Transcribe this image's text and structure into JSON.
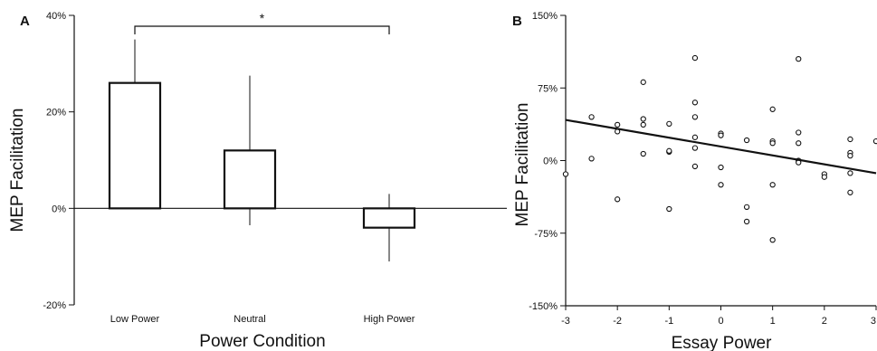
{
  "chart_data": [
    {
      "panel_label": "A",
      "type": "bar",
      "categories": [
        "Low Power",
        "Neutral",
        "High Power"
      ],
      "values": [
        26,
        12,
        -4
      ],
      "error_low": [
        17,
        -3.5,
        -11
      ],
      "error_high": [
        35,
        27.5,
        3
      ],
      "xlabel": "Power Condition",
      "ylabel": "MEP Facilitation",
      "ylim": [
        -20,
        40
      ],
      "yticks": [
        -20,
        0,
        20,
        40
      ],
      "ytick_labels": [
        "-20%",
        "0%",
        "20%",
        "40%"
      ],
      "significance": {
        "from": "Low Power",
        "to": "High Power",
        "label": "*"
      },
      "grid": false
    },
    {
      "panel_label": "B",
      "type": "scatter",
      "xlabel": "Essay Power",
      "ylabel": "MEP Facilitation",
      "xlim": [
        -3,
        3
      ],
      "ylim": [
        -150,
        150
      ],
      "xticks": [
        -3,
        -2,
        -1,
        0,
        1,
        2,
        3
      ],
      "xtick_labels": [
        "-3",
        "-2",
        "-1",
        "0",
        "1",
        "2",
        "3"
      ],
      "yticks": [
        -150,
        -75,
        0,
        75,
        150
      ],
      "ytick_labels": [
        "-150%",
        "-75%",
        "0%",
        "75%",
        "150%"
      ],
      "points": [
        [
          -3,
          -14
        ],
        [
          -2.5,
          45
        ],
        [
          -2.5,
          2
        ],
        [
          -2,
          37
        ],
        [
          -2,
          30
        ],
        [
          -2,
          -40
        ],
        [
          -1.5,
          81
        ],
        [
          -1.5,
          43
        ],
        [
          -1.5,
          37
        ],
        [
          -1.5,
          7
        ],
        [
          -1,
          38
        ],
        [
          -1,
          9
        ],
        [
          -1,
          10
        ],
        [
          -1,
          -50
        ],
        [
          -0.5,
          106
        ],
        [
          -0.5,
          60
        ],
        [
          -0.5,
          45
        ],
        [
          -0.5,
          24
        ],
        [
          -0.5,
          13
        ],
        [
          -0.5,
          -6
        ],
        [
          0,
          28
        ],
        [
          0,
          26
        ],
        [
          0,
          -7
        ],
        [
          0,
          -25
        ],
        [
          0.5,
          21
        ],
        [
          0.5,
          -48
        ],
        [
          0.5,
          -63
        ],
        [
          1,
          53
        ],
        [
          1,
          20
        ],
        [
          1,
          18
        ],
        [
          1,
          -25
        ],
        [
          1,
          -82
        ],
        [
          1.5,
          105
        ],
        [
          1.5,
          29
        ],
        [
          1.5,
          18
        ],
        [
          1.5,
          0
        ],
        [
          1.5,
          -2
        ],
        [
          2,
          -14
        ],
        [
          2,
          -17
        ],
        [
          2.5,
          22
        ],
        [
          2.5,
          8
        ],
        [
          2.5,
          5
        ],
        [
          2.5,
          -13
        ],
        [
          2.5,
          -33
        ],
        [
          3,
          20
        ]
      ],
      "trendline": {
        "x": [
          -3,
          3
        ],
        "y": [
          42,
          -13
        ]
      },
      "grid": false
    }
  ]
}
